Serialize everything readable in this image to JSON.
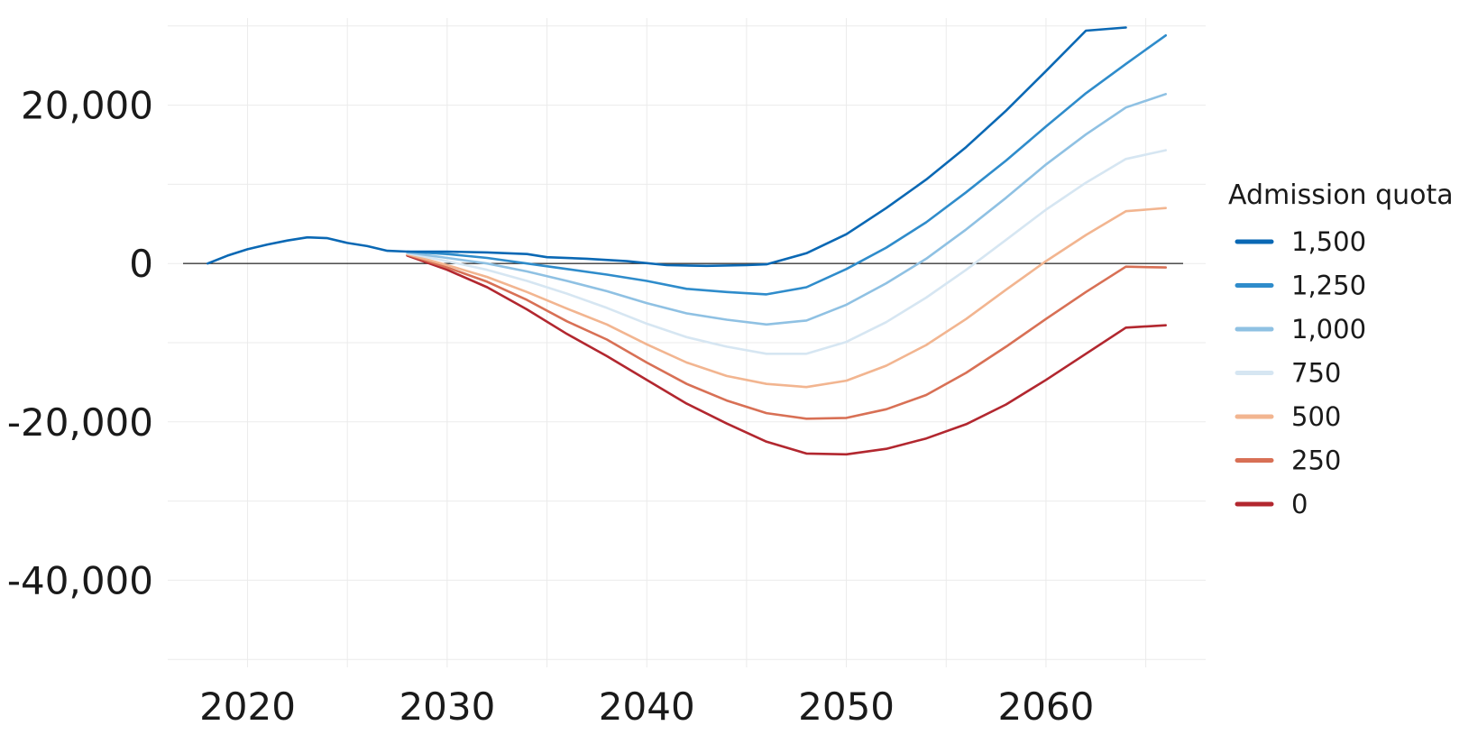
{
  "chart_data": {
    "type": "line",
    "title": "",
    "xlabel": "",
    "ylabel": "",
    "xlim": [
      2016,
      2068
    ],
    "ylim": [
      -51000,
      31000
    ],
    "x_ticks": [
      2020,
      2030,
      2040,
      2050,
      2060
    ],
    "x_tick_labels": [
      "2020",
      "2030",
      "2040",
      "2050",
      "2060"
    ],
    "y_ticks": [
      20000,
      0,
      -20000,
      -40000
    ],
    "y_tick_labels": [
      "20,000",
      "0",
      "-20,000",
      "-40,000"
    ],
    "grid": true,
    "zero_line": true,
    "legend": {
      "title": "Admission quota",
      "placement": "right"
    },
    "series": [
      {
        "name": "1,500",
        "color": "#0a68b4",
        "x": [
          2018,
          2019,
          2020,
          2021,
          2022,
          2023,
          2024,
          2025,
          2026,
          2027,
          2028,
          2030,
          2032,
          2034,
          2035,
          2037,
          2039,
          2041,
          2043,
          2045,
          2046,
          2048,
          2050,
          2052,
          2054,
          2056,
          2058,
          2060,
          2062,
          2064
        ],
        "y": [
          0,
          1000,
          1800,
          2400,
          2900,
          3300,
          3200,
          2600,
          2200,
          1600,
          1500,
          1500,
          1400,
          1200,
          800,
          600,
          300,
          -200,
          -300,
          -200,
          -100,
          1300,
          3700,
          7000,
          10600,
          14700,
          19300,
          24300,
          29400,
          29800
        ]
      },
      {
        "name": "1,250",
        "color": "#2f8ccb",
        "x": [
          2028,
          2030,
          2032,
          2034,
          2036,
          2038,
          2040,
          2042,
          2044,
          2046,
          2048,
          2050,
          2052,
          2054,
          2056,
          2058,
          2060,
          2062,
          2064,
          2066
        ],
        "y": [
          1500,
          1200,
          700,
          0,
          -700,
          -1400,
          -2200,
          -3200,
          -3600,
          -3900,
          -3000,
          -700,
          2000,
          5200,
          9000,
          13000,
          17300,
          21500,
          25200,
          28800
        ]
      },
      {
        "name": "1,000",
        "color": "#8fc1e3",
        "x": [
          2028,
          2030,
          2032,
          2034,
          2036,
          2038,
          2040,
          2042,
          2044,
          2046,
          2048,
          2050,
          2052,
          2054,
          2056,
          2058,
          2060,
          2062,
          2064,
          2066
        ],
        "y": [
          1400,
          700,
          0,
          -1000,
          -2200,
          -3500,
          -5000,
          -6300,
          -7100,
          -7700,
          -7200,
          -5200,
          -2500,
          600,
          4300,
          8300,
          12500,
          16300,
          19700,
          21400
        ]
      },
      {
        "name": "750",
        "color": "#d6e6f2",
        "x": [
          2028,
          2030,
          2032,
          2034,
          2036,
          2038,
          2040,
          2042,
          2044,
          2046,
          2048,
          2050,
          2052,
          2054,
          2056,
          2058,
          2060,
          2062,
          2064,
          2066
        ],
        "y": [
          1300,
          300,
          -800,
          -2200,
          -3800,
          -5600,
          -7600,
          -9300,
          -10500,
          -11400,
          -11400,
          -9900,
          -7400,
          -4300,
          -800,
          3000,
          6800,
          10200,
          13200,
          14300
        ]
      },
      {
        "name": "500",
        "color": "#f2b590",
        "x": [
          2028,
          2030,
          2032,
          2034,
          2036,
          2038,
          2040,
          2042,
          2044,
          2046,
          2048,
          2050,
          2052,
          2054,
          2056,
          2058,
          2060,
          2062,
          2064,
          2066
        ],
        "y": [
          1200,
          -200,
          -1700,
          -3600,
          -5700,
          -7700,
          -10200,
          -12500,
          -14200,
          -15200,
          -15600,
          -14800,
          -12900,
          -10300,
          -7000,
          -3300,
          300,
          3600,
          6600,
          7000
        ]
      },
      {
        "name": "250",
        "color": "#d87055",
        "x": [
          2028,
          2030,
          2032,
          2034,
          2036,
          2038,
          2040,
          2042,
          2044,
          2046,
          2048,
          2050,
          2052,
          2054,
          2056,
          2058,
          2060,
          2062,
          2064,
          2066
        ],
        "y": [
          1100,
          -500,
          -2300,
          -4600,
          -7300,
          -9600,
          -12500,
          -15200,
          -17300,
          -18900,
          -19600,
          -19500,
          -18400,
          -16600,
          -13800,
          -10500,
          -7000,
          -3600,
          -400,
          -500
        ]
      },
      {
        "name": "0",
        "color": "#b2272f",
        "x": [
          2028,
          2030,
          2032,
          2034,
          2036,
          2038,
          2040,
          2042,
          2044,
          2046,
          2048,
          2050,
          2052,
          2054,
          2056,
          2058,
          2060,
          2062,
          2064,
          2066
        ],
        "y": [
          1000,
          -800,
          -3000,
          -5800,
          -8900,
          -11700,
          -14700,
          -17700,
          -20200,
          -22500,
          -24000,
          -24100,
          -23400,
          -22100,
          -20300,
          -17800,
          -14700,
          -11400,
          -8100,
          -7800
        ]
      }
    ]
  }
}
